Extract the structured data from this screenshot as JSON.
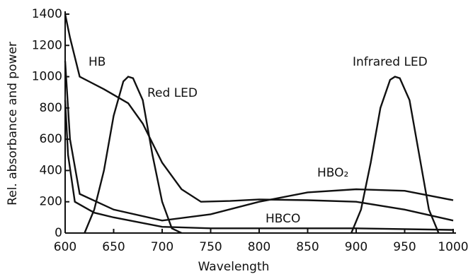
{
  "chart_data": {
    "type": "line",
    "x_label": "Wavelength",
    "y_label": "Rel. absorbance and power",
    "xlim": [
      600,
      1000
    ],
    "ylim": [
      0,
      1400
    ],
    "xticks": [
      600,
      650,
      700,
      750,
      800,
      850,
      900,
      950,
      1000
    ],
    "yticks": [
      0,
      200,
      400,
      600,
      800,
      1000,
      1200,
      1400
    ],
    "series": [
      {
        "name": "HB",
        "color": "#111111",
        "x": [
          600,
          605,
          615,
          640,
          665,
          680,
          700,
          720,
          740,
          770,
          800,
          850,
          900,
          950,
          1000
        ],
        "values": [
          1400,
          1250,
          1000,
          920,
          830,
          700,
          450,
          280,
          200,
          205,
          215,
          210,
          200,
          150,
          80
        ]
      },
      {
        "name": "HBO₂",
        "color": "#111111",
        "x": [
          600,
          605,
          615,
          650,
          700,
          750,
          800,
          850,
          900,
          950,
          1000
        ],
        "values": [
          1100,
          600,
          250,
          150,
          80,
          120,
          200,
          260,
          280,
          270,
          210
        ]
      },
      {
        "name": "HBCO",
        "color": "#111111",
        "x": [
          600,
          603,
          610,
          630,
          650,
          700,
          750,
          850,
          900,
          1000
        ],
        "values": [
          850,
          500,
          200,
          130,
          100,
          40,
          30,
          30,
          30,
          20
        ]
      },
      {
        "name": "Red LED",
        "color": "#111111",
        "x": [
          620,
          630,
          640,
          650,
          660,
          665,
          670,
          680,
          690,
          700,
          710,
          720
        ],
        "values": [
          0,
          150,
          400,
          750,
          970,
          1000,
          990,
          850,
          500,
          200,
          30,
          0
        ]
      },
      {
        "name": "Infrared LED",
        "color": "#111111",
        "x": [
          895,
          905,
          915,
          925,
          935,
          940,
          945,
          955,
          965,
          975,
          985
        ],
        "values": [
          0,
          150,
          450,
          800,
          980,
          1000,
          990,
          850,
          500,
          150,
          0
        ]
      }
    ]
  }
}
